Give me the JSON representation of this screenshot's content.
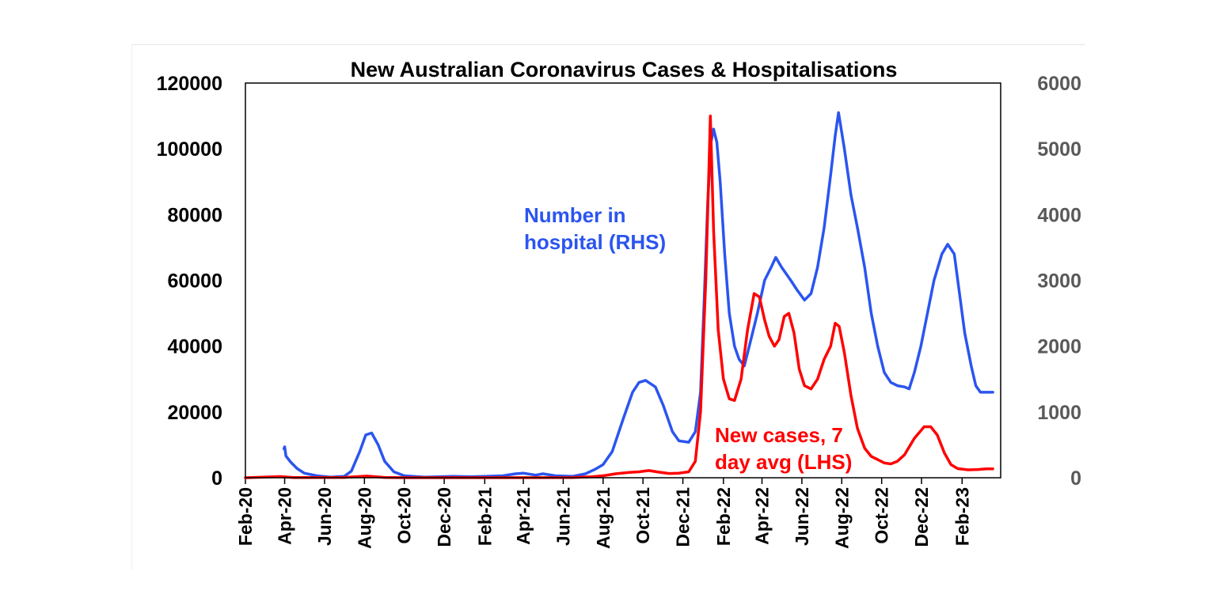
{
  "chart_data": {
    "type": "line",
    "title": "New Australian Coronavirus Cases & Hospitalisations",
    "x_tick_labels": [
      "Feb-20",
      "Apr-20",
      "Jun-20",
      "Aug-20",
      "Oct-20",
      "Dec-20",
      "Feb-21",
      "Apr-21",
      "Jun-21",
      "Aug-21",
      "Oct-21",
      "Dec-21",
      "Feb-22",
      "Apr-22",
      "Jun-22",
      "Aug-22",
      "Oct-22",
      "Dec-22",
      "Feb-23"
    ],
    "y_left": {
      "ylim": [
        0,
        120000
      ],
      "ticks": [
        "0",
        "20000",
        "40000",
        "60000",
        "80000",
        "100000",
        "120000"
      ]
    },
    "y_right": {
      "ylim": [
        0,
        6000
      ],
      "ticks": [
        "0",
        "1000",
        "2000",
        "3000",
        "4000",
        "5000",
        "6000"
      ]
    },
    "series": [
      {
        "name": "Number in hospital (RHS)",
        "axis": "right",
        "color": "#2b55f0",
        "annotation_lines": [
          "Number in",
          "hospital (RHS)"
        ],
        "points": [
          [
            "2020-03-31",
            440
          ],
          [
            "2020-04-01",
            470
          ],
          [
            "2020-04-03",
            330
          ],
          [
            "2020-04-10",
            240
          ],
          [
            "2020-04-20",
            140
          ],
          [
            "2020-05-01",
            70
          ],
          [
            "2020-05-20",
            30
          ],
          [
            "2020-06-10",
            10
          ],
          [
            "2020-07-01",
            20
          ],
          [
            "2020-07-12",
            100
          ],
          [
            "2020-07-25",
            400
          ],
          [
            "2020-08-03",
            650
          ],
          [
            "2020-08-12",
            680
          ],
          [
            "2020-08-22",
            500
          ],
          [
            "2020-09-01",
            250
          ],
          [
            "2020-09-15",
            90
          ],
          [
            "2020-10-01",
            30
          ],
          [
            "2020-11-01",
            10
          ],
          [
            "2020-12-15",
            20
          ],
          [
            "2021-01-10",
            15
          ],
          [
            "2021-02-01",
            20
          ],
          [
            "2021-03-01",
            30
          ],
          [
            "2021-03-20",
            60
          ],
          [
            "2021-04-01",
            70
          ],
          [
            "2021-04-20",
            40
          ],
          [
            "2021-05-01",
            60
          ],
          [
            "2021-05-20",
            30
          ],
          [
            "2021-06-15",
            20
          ],
          [
            "2021-07-05",
            60
          ],
          [
            "2021-07-20",
            130
          ],
          [
            "2021-08-01",
            200
          ],
          [
            "2021-08-15",
            400
          ],
          [
            "2021-09-01",
            900
          ],
          [
            "2021-09-15",
            1300
          ],
          [
            "2021-09-25",
            1450
          ],
          [
            "2021-10-05",
            1480
          ],
          [
            "2021-10-20",
            1380
          ],
          [
            "2021-11-01",
            1100
          ],
          [
            "2021-11-15",
            700
          ],
          [
            "2021-11-25",
            560
          ],
          [
            "2021-12-10",
            540
          ],
          [
            "2021-12-20",
            700
          ],
          [
            "2021-12-28",
            1300
          ],
          [
            "2022-01-03",
            2800
          ],
          [
            "2022-01-08",
            4200
          ],
          [
            "2022-01-13",
            5100
          ],
          [
            "2022-01-17",
            5300
          ],
          [
            "2022-01-22",
            5100
          ],
          [
            "2022-01-27",
            4500
          ],
          [
            "2022-02-03",
            3400
          ],
          [
            "2022-02-10",
            2500
          ],
          [
            "2022-02-18",
            2000
          ],
          [
            "2022-02-25",
            1800
          ],
          [
            "2022-03-05",
            1700
          ],
          [
            "2022-03-15",
            2100
          ],
          [
            "2022-03-25",
            2500
          ],
          [
            "2022-04-05",
            3000
          ],
          [
            "2022-04-15",
            3200
          ],
          [
            "2022-04-22",
            3350
          ],
          [
            "2022-05-01",
            3200
          ],
          [
            "2022-05-15",
            3000
          ],
          [
            "2022-05-25",
            2850
          ],
          [
            "2022-06-05",
            2700
          ],
          [
            "2022-06-15",
            2800
          ],
          [
            "2022-06-25",
            3200
          ],
          [
            "2022-07-05",
            3800
          ],
          [
            "2022-07-15",
            4600
          ],
          [
            "2022-07-22",
            5200
          ],
          [
            "2022-07-27",
            5550
          ],
          [
            "2022-08-05",
            5000
          ],
          [
            "2022-08-15",
            4300
          ],
          [
            "2022-08-25",
            3800
          ],
          [
            "2022-09-05",
            3200
          ],
          [
            "2022-09-15",
            2500
          ],
          [
            "2022-09-25",
            2000
          ],
          [
            "2022-10-05",
            1600
          ],
          [
            "2022-10-15",
            1450
          ],
          [
            "2022-10-25",
            1400
          ],
          [
            "2022-11-05",
            1380
          ],
          [
            "2022-11-12",
            1350
          ],
          [
            "2022-11-20",
            1600
          ],
          [
            "2022-11-30",
            2000
          ],
          [
            "2022-12-10",
            2500
          ],
          [
            "2022-12-20",
            3000
          ],
          [
            "2023-01-01",
            3400
          ],
          [
            "2023-01-10",
            3550
          ],
          [
            "2023-01-20",
            3400
          ],
          [
            "2023-01-28",
            2800
          ],
          [
            "2023-02-05",
            2200
          ],
          [
            "2023-02-15",
            1700
          ],
          [
            "2023-02-22",
            1400
          ],
          [
            "2023-03-01",
            1300
          ],
          [
            "2023-03-10",
            1300
          ],
          [
            "2023-03-20",
            1300
          ]
        ]
      },
      {
        "name": "New cases, 7 day avg (LHS)",
        "axis": "left",
        "color": "#ff0000",
        "annotation_lines": [
          "New cases, 7",
          "day avg (LHS)"
        ],
        "points": [
          [
            "2020-02-01",
            0
          ],
          [
            "2020-03-25",
            350
          ],
          [
            "2020-04-15",
            50
          ],
          [
            "2020-07-01",
            100
          ],
          [
            "2020-08-05",
            500
          ],
          [
            "2020-09-01",
            100
          ],
          [
            "2020-10-01",
            20
          ],
          [
            "2021-06-15",
            50
          ],
          [
            "2021-07-15",
            300
          ],
          [
            "2021-08-01",
            600
          ],
          [
            "2021-08-20",
            1200
          ],
          [
            "2021-09-10",
            1600
          ],
          [
            "2021-09-25",
            1800
          ],
          [
            "2021-10-10",
            2200
          ],
          [
            "2021-10-25",
            1700
          ],
          [
            "2021-11-10",
            1300
          ],
          [
            "2021-11-25",
            1400
          ],
          [
            "2021-12-10",
            1800
          ],
          [
            "2021-12-20",
            5000
          ],
          [
            "2021-12-28",
            20000
          ],
          [
            "2022-01-05",
            60000
          ],
          [
            "2022-01-10",
            95000
          ],
          [
            "2022-01-12",
            110000
          ],
          [
            "2022-01-17",
            75000
          ],
          [
            "2022-01-24",
            45000
          ],
          [
            "2022-02-01",
            30000
          ],
          [
            "2022-02-10",
            24000
          ],
          [
            "2022-02-18",
            23500
          ],
          [
            "2022-02-28",
            30000
          ],
          [
            "2022-03-10",
            45000
          ],
          [
            "2022-03-20",
            56000
          ],
          [
            "2022-03-28",
            55000
          ],
          [
            "2022-04-05",
            48000
          ],
          [
            "2022-04-12",
            43000
          ],
          [
            "2022-04-20",
            40000
          ],
          [
            "2022-04-27",
            42000
          ],
          [
            "2022-05-05",
            49000
          ],
          [
            "2022-05-12",
            50000
          ],
          [
            "2022-05-20",
            44000
          ],
          [
            "2022-05-28",
            33000
          ],
          [
            "2022-06-05",
            28000
          ],
          [
            "2022-06-15",
            27000
          ],
          [
            "2022-06-25",
            30000
          ],
          [
            "2022-07-05",
            36000
          ],
          [
            "2022-07-15",
            40000
          ],
          [
            "2022-07-22",
            47000
          ],
          [
            "2022-07-28",
            46000
          ],
          [
            "2022-08-05",
            38000
          ],
          [
            "2022-08-15",
            25000
          ],
          [
            "2022-08-25",
            15000
          ],
          [
            "2022-09-05",
            9000
          ],
          [
            "2022-09-15",
            6500
          ],
          [
            "2022-09-25",
            5500
          ],
          [
            "2022-10-05",
            4500
          ],
          [
            "2022-10-15",
            4200
          ],
          [
            "2022-10-25",
            5000
          ],
          [
            "2022-11-05",
            7000
          ],
          [
            "2022-11-20",
            12000
          ],
          [
            "2022-12-05",
            15500
          ],
          [
            "2022-12-15",
            15500
          ],
          [
            "2022-12-25",
            13000
          ],
          [
            "2023-01-05",
            7500
          ],
          [
            "2023-01-15",
            4000
          ],
          [
            "2023-01-25",
            2800
          ],
          [
            "2023-02-10",
            2400
          ],
          [
            "2023-02-25",
            2500
          ],
          [
            "2023-03-10",
            2700
          ],
          [
            "2023-03-20",
            2700
          ]
        ]
      }
    ]
  }
}
